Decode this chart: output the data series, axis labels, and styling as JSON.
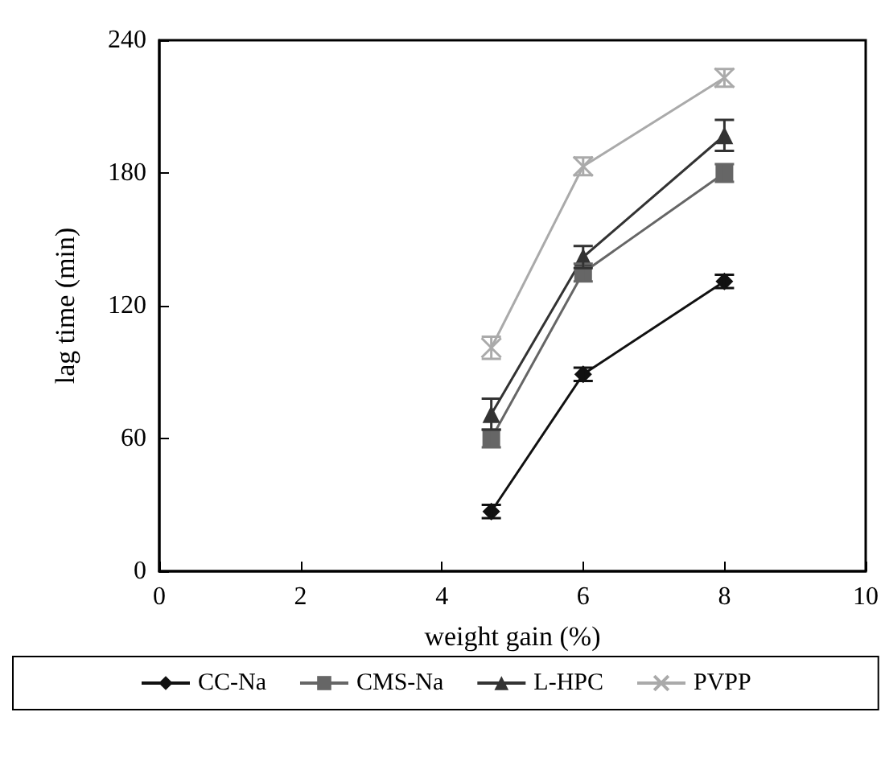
{
  "chart_data": {
    "type": "line",
    "xlabel": "weight gain (%)",
    "ylabel": "lag time (min)",
    "x": [
      4.7,
      6,
      8
    ],
    "xlim": [
      0,
      10
    ],
    "xticks": [
      0,
      2,
      4,
      6,
      8,
      10
    ],
    "ylim": [
      0,
      240
    ],
    "yticks": [
      0,
      60,
      120,
      180,
      240
    ],
    "grid": false,
    "legend": "bottom",
    "line_style": "solid",
    "series": [
      {
        "name": "CC-Na",
        "color": "#111111",
        "marker": "diamond",
        "values": [
          27,
          89,
          131
        ],
        "errors": [
          3,
          3,
          3
        ]
      },
      {
        "name": "CMS-Na",
        "color": "#666666",
        "marker": "square",
        "values": [
          60,
          135,
          180
        ],
        "errors": [
          4,
          4,
          4
        ]
      },
      {
        "name": "L-HPC",
        "color": "#333333",
        "marker": "triangle",
        "values": [
          71,
          142,
          197
        ],
        "errors": [
          7,
          5,
          7
        ]
      },
      {
        "name": "PVPP",
        "color": "#aaaaaa",
        "marker": "cross",
        "values": [
          101,
          183,
          223
        ],
        "errors": [
          5,
          4,
          4
        ]
      }
    ]
  }
}
